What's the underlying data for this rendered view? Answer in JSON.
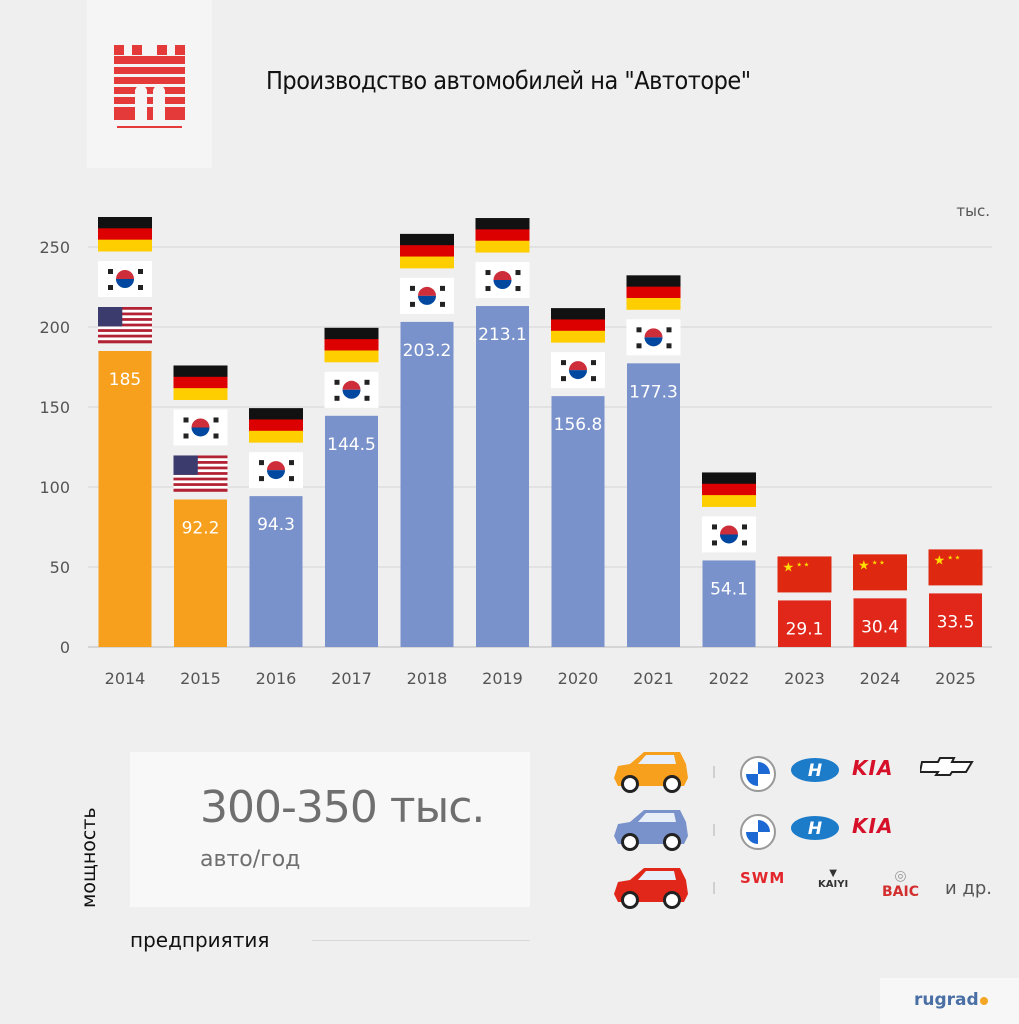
{
  "title": "Производство автомобилей на \"Автоторе\"",
  "chart_data": {
    "type": "bar",
    "title": "Производство автомобилей на \"Автоторе\"",
    "unit_label": "тыс.",
    "categories": [
      "2014",
      "2015",
      "2016",
      "2017",
      "2018",
      "2019",
      "2020",
      "2021",
      "2022",
      "2023",
      "2024",
      "2025"
    ],
    "values": [
      185,
      92.2,
      94.3,
      144.5,
      203.2,
      213.1,
      156.8,
      177.3,
      54.1,
      29.1,
      30.4,
      33.5
    ],
    "value_labels": [
      "185",
      "92.2",
      "94.3",
      "144.5",
      "203.2",
      "213.1",
      "156.8",
      "177.3",
      "54.1",
      "29.1",
      "30.4",
      "33.5"
    ],
    "bar_colors": [
      "#F7A01D",
      "#F7A01D",
      "#7A92CB",
      "#7A92CB",
      "#7A92CB",
      "#7A92CB",
      "#7A92CB",
      "#7A92CB",
      "#7A92CB",
      "#E0271A",
      "#E0271A",
      "#E0271A"
    ],
    "flags": [
      [
        "de",
        "kr",
        "us"
      ],
      [
        "de",
        "kr",
        "us"
      ],
      [
        "de",
        "kr"
      ],
      [
        "de",
        "kr"
      ],
      [
        "de",
        "kr"
      ],
      [
        "de",
        "kr"
      ],
      [
        "de",
        "kr"
      ],
      [
        "de",
        "kr"
      ],
      [
        "de",
        "kr"
      ],
      [
        "cn"
      ],
      [
        "cn"
      ],
      [
        "cn"
      ]
    ],
    "yticks": [
      0,
      50,
      100,
      150,
      200,
      250
    ],
    "ylim": [
      0,
      275
    ],
    "grid": true
  },
  "capacity": {
    "label": "мощность",
    "value": "300-350 тыс.",
    "unit": "авто/год",
    "entity_label": "предприятия"
  },
  "legend": [
    {
      "color": "#F7A01D",
      "brands": [
        "BMW",
        "Hyundai",
        "KIA",
        "Chevrolet"
      ]
    },
    {
      "color": "#7A92CB",
      "brands": [
        "BMW",
        "Hyundai",
        "KIA"
      ]
    },
    {
      "color": "#E0271A",
      "brands": [
        "SWM",
        "KAIYI",
        "BAIC"
      ],
      "etc": "и др."
    }
  ],
  "source": "rugrad"
}
